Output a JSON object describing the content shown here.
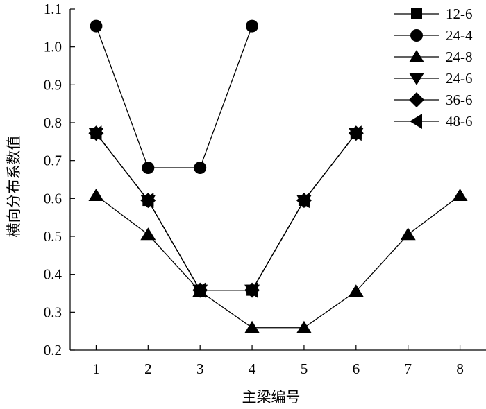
{
  "chart_data": {
    "type": "line",
    "xlabel": "主梁编号",
    "ylabel": "横向分布系数值",
    "xlim": [
      0.5,
      8.5
    ],
    "ylim": [
      0.2,
      1.1
    ],
    "x_ticks": [
      1,
      2,
      3,
      4,
      5,
      6,
      7,
      8
    ],
    "y_ticks": [
      0.2,
      0.3,
      0.4,
      0.5,
      0.6,
      0.7,
      0.8,
      0.9,
      1.0,
      1.1
    ],
    "y_tick_labels": [
      "0.2",
      "0.3",
      "0.4",
      "0.5",
      "0.6",
      "0.7",
      "0.8",
      "0.9",
      "1.0",
      "1.1"
    ],
    "grid": false,
    "legend_position": "top-right",
    "series": [
      {
        "name": "12-6",
        "marker": "square",
        "x": [
          1,
          2,
          3,
          4,
          5,
          6
        ],
        "values": [
          0.772,
          0.595,
          0.358,
          0.358,
          0.595,
          0.772
        ]
      },
      {
        "name": "24-4",
        "marker": "circle",
        "x": [
          1,
          2,
          3,
          4
        ],
        "values": [
          1.055,
          0.681,
          0.681,
          1.055
        ]
      },
      {
        "name": "24-8",
        "marker": "triangle-up",
        "x": [
          1,
          2,
          3,
          4,
          5,
          6,
          7,
          8
        ],
        "values": [
          0.608,
          0.505,
          0.355,
          0.259,
          0.259,
          0.355,
          0.505,
          0.608
        ]
      },
      {
        "name": "24-6",
        "marker": "triangle-down",
        "x": [
          1,
          2,
          3,
          4,
          5,
          6
        ],
        "values": [
          0.772,
          0.595,
          0.358,
          0.358,
          0.595,
          0.772
        ]
      },
      {
        "name": "36-6",
        "marker": "diamond",
        "x": [
          1,
          2,
          3,
          4,
          5,
          6
        ],
        "values": [
          0.772,
          0.595,
          0.358,
          0.358,
          0.595,
          0.772
        ]
      },
      {
        "name": "48-6",
        "marker": "triangle-left",
        "x": [
          1,
          2,
          3,
          4,
          5,
          6
        ],
        "values": [
          0.772,
          0.595,
          0.358,
          0.358,
          0.595,
          0.772
        ]
      }
    ]
  }
}
